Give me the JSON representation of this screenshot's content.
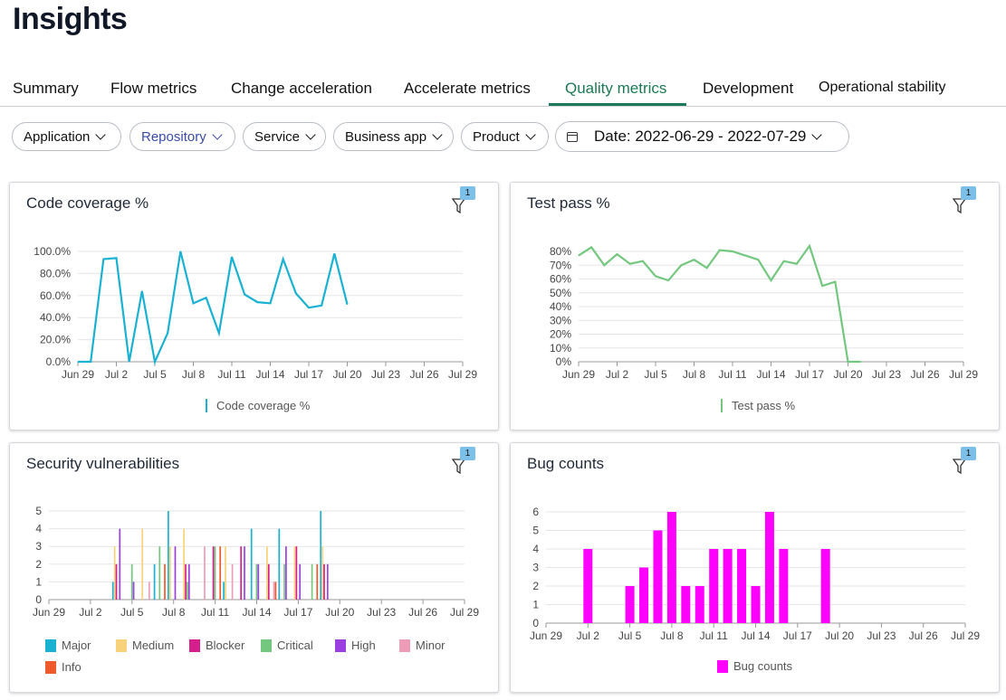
{
  "page": {
    "title": "Insights"
  },
  "tabs": [
    {
      "label": "Summary",
      "active": false
    },
    {
      "label": "Flow metrics",
      "active": false
    },
    {
      "label": "Change acceleration",
      "active": false
    },
    {
      "label": "Accelerate metrics",
      "active": false
    },
    {
      "label": "Quality metrics",
      "active": true
    },
    {
      "label": "Development",
      "active": false
    },
    {
      "label": "Operational stability",
      "active": false
    }
  ],
  "filters": {
    "application": "Application",
    "repository": "Repository",
    "service": "Service",
    "business_app": "Business app",
    "product": "Product",
    "date": "Date: 2022-06-29 - 2022-07-29"
  },
  "colors": {
    "accent": "#1b7a55",
    "coverage": "#1ab2d3",
    "testpass": "#74c77e",
    "bug": "#ff00ff",
    "major": "#1ab2d3",
    "medium": "#f8d27a",
    "blocker": "#d61f8c",
    "critical": "#74c77e",
    "high": "#9b3fe0",
    "minor": "#ee9cb8",
    "info": "#ef5a2a"
  },
  "chart_data": [
    {
      "type": "line",
      "title": "Code coverage %",
      "filter_badge": "1",
      "x_ticks": [
        "Jun 29",
        "Jul 2",
        "Jul 5",
        "Jul 8",
        "Jul 11",
        "Jul 14",
        "Jul 17",
        "Jul 20",
        "Jul 23",
        "Jul 26",
        "Jul 29"
      ],
      "y_ticks": [
        "100.0%",
        "80.0%",
        "60.0%",
        "40.0%",
        "20.0%",
        "0.0%"
      ],
      "ylim": [
        0,
        100
      ],
      "series": [
        {
          "name": "Code coverage %",
          "x": [
            0,
            1,
            2,
            3,
            4,
            5,
            6,
            7,
            8,
            9,
            10,
            11,
            12,
            13,
            14,
            15,
            16,
            17,
            18,
            19,
            20,
            21
          ],
          "values": [
            0,
            0,
            93,
            94,
            0,
            64,
            0,
            26,
            100,
            53,
            58,
            26,
            95,
            61,
            54,
            53,
            93,
            62,
            49,
            51,
            98,
            52
          ]
        }
      ]
    },
    {
      "type": "line",
      "title": "Test pass %",
      "filter_badge": "1",
      "x_ticks": [
        "Jun 29",
        "Jul 2",
        "Jul 5",
        "Jul 8",
        "Jul 11",
        "Jul 14",
        "Jul 17",
        "Jul 20",
        "Jul 23",
        "Jul 26",
        "Jul 29"
      ],
      "y_ticks": [
        "80%",
        "70%",
        "60%",
        "50%",
        "40%",
        "30%",
        "20%",
        "10%",
        "0%"
      ],
      "ylim": [
        0,
        80
      ],
      "series": [
        {
          "name": "Test pass %",
          "x": [
            0,
            1,
            2,
            3,
            4,
            5,
            6,
            7,
            8,
            9,
            10,
            11,
            12,
            13,
            14,
            15,
            16,
            17,
            18,
            19,
            20,
            21,
            22
          ],
          "values": [
            77,
            83,
            70,
            78,
            71,
            73,
            62,
            59,
            70,
            74,
            68,
            81,
            80,
            77,
            74,
            59,
            73,
            71,
            84,
            55,
            58,
            0,
            0
          ]
        }
      ]
    },
    {
      "type": "bar",
      "title": "Security vulnerabilities",
      "filter_badge": "1",
      "x_ticks": [
        "Jun 29",
        "Jul 2",
        "Jul 5",
        "Jul 8",
        "Jul 11",
        "Jul 14",
        "Jul 17",
        "Jul 20",
        "Jul 23",
        "Jul 26",
        "Jul 29"
      ],
      "y_ticks": [
        "5",
        "4",
        "3",
        "2",
        "1",
        "0"
      ],
      "ylim": [
        0,
        5
      ],
      "series": [
        {
          "name": "Major",
          "x": [
            5,
            8,
            9,
            13,
            15,
            17,
            20
          ],
          "values": [
            1,
            2,
            5,
            1,
            4,
            4,
            5
          ]
        },
        {
          "name": "Medium",
          "x": [
            5,
            7,
            9,
            10,
            13,
            16,
            18,
            20
          ],
          "values": [
            3,
            4,
            3,
            4,
            3,
            3,
            3,
            3
          ]
        },
        {
          "name": "Blocker",
          "x": [
            5,
            10,
            12,
            14,
            16,
            18,
            20
          ],
          "values": [
            2,
            2,
            3,
            3,
            2,
            3,
            2
          ]
        },
        {
          "name": "Critical",
          "x": [
            6,
            8,
            10,
            12,
            15,
            17,
            19
          ],
          "values": [
            2,
            3,
            1,
            3,
            2,
            2,
            2
          ]
        },
        {
          "name": "High",
          "x": [
            5,
            6,
            9,
            10,
            14,
            15,
            17,
            18,
            20
          ],
          "values": [
            4,
            1,
            3,
            2,
            3,
            2,
            3,
            2,
            2
          ]
        },
        {
          "name": "Minor",
          "x": [
            7,
            11,
            13,
            16
          ],
          "values": [
            1,
            3,
            2,
            1
          ]
        },
        {
          "name": "Info",
          "x": [
            8,
            12,
            16,
            19
          ],
          "values": [
            2,
            3,
            1,
            2
          ]
        }
      ],
      "legend": [
        "Major",
        "Medium",
        "Blocker",
        "Critical",
        "High",
        "Minor",
        "Info"
      ]
    },
    {
      "type": "bar",
      "title": "Bug counts",
      "filter_badge": "1",
      "x_ticks": [
        "Jun 29",
        "Jul 2",
        "Jul 5",
        "Jul 8",
        "Jul 11",
        "Jul 14",
        "Jul 17",
        "Jul 20",
        "Jul 23",
        "Jul 26",
        "Jul 29"
      ],
      "y_ticks": [
        "6",
        "5",
        "4",
        "3",
        "2",
        "1",
        "0"
      ],
      "ylim": [
        0,
        6
      ],
      "series": [
        {
          "name": "Bug counts",
          "x": [
            3,
            6,
            7,
            8,
            9,
            10,
            11,
            12,
            13,
            14,
            15,
            16,
            17,
            20
          ],
          "values": [
            4,
            2,
            3,
            5,
            6,
            2,
            2,
            4,
            4,
            4,
            2,
            6,
            4,
            4
          ]
        }
      ]
    }
  ]
}
